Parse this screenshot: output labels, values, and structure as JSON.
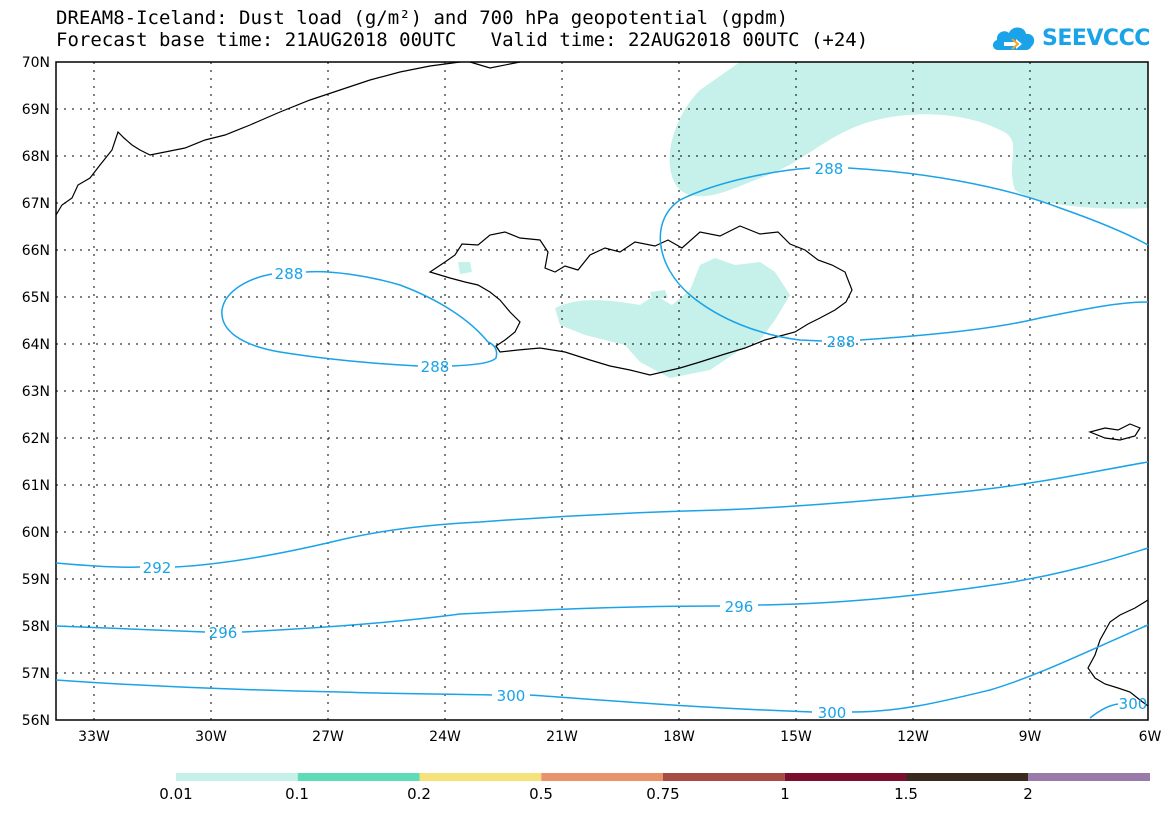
{
  "header": {
    "title_line1": "DREAM8-Iceland: Dust load (g/m²) and 700 hPa geopotential (gpdm)",
    "title_line2": "Forecast base time: 21AUG2018 00UTC   Valid time: 22AUG2018 00UTC (+24)"
  },
  "logo": {
    "text": "SEEVCCC",
    "color": "#1aa3e8"
  },
  "map": {
    "lon_labels": [
      "33W",
      "30W",
      "27W",
      "24W",
      "21W",
      "18W",
      "15W",
      "12W",
      "9W",
      "6W"
    ],
    "lat_labels": [
      "70N",
      "69N",
      "68N",
      "67N",
      "66N",
      "65N",
      "64N",
      "63N",
      "62N",
      "61N",
      "60N",
      "59N",
      "58N",
      "57N",
      "56N"
    ],
    "contour_color": "#1aa3e8",
    "coast_color": "#000000",
    "dust_fill_color": "#c6f0ea",
    "contour_labels": [
      "288",
      "288",
      "288",
      "288",
      "292",
      "296",
      "296",
      "300",
      "300",
      "300"
    ]
  },
  "legend": {
    "colors": [
      "#c6f0ea",
      "#5ddcb7",
      "#f5e27a",
      "#e8936a",
      "#a84b42",
      "#7a0f2e",
      "#3a2a1e",
      "#9a7aa8"
    ],
    "labels": [
      "0.01",
      "0.1",
      "0.2",
      "0.5",
      "0.75",
      "1",
      "1.5",
      "2"
    ]
  }
}
